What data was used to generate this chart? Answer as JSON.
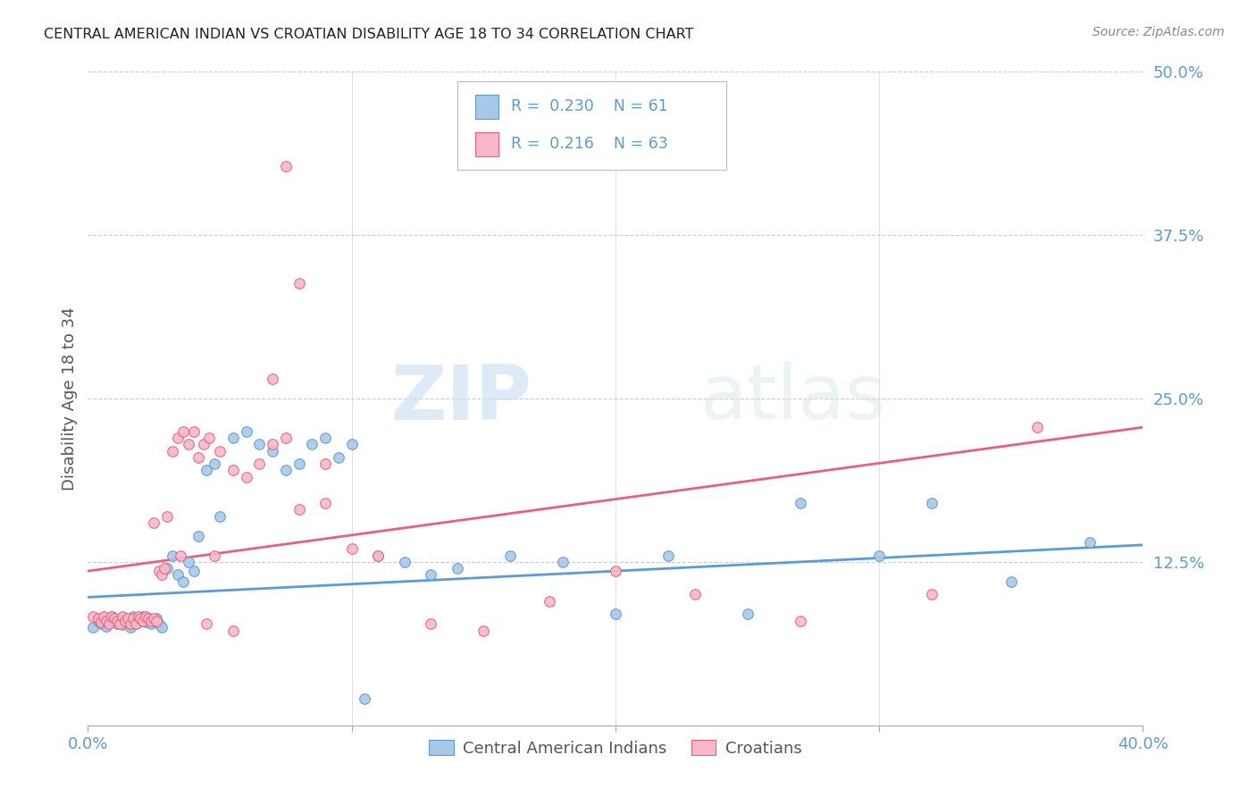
{
  "title": "CENTRAL AMERICAN INDIAN VS CROATIAN DISABILITY AGE 18 TO 34 CORRELATION CHART",
  "source": "Source: ZipAtlas.com",
  "ylabel": "Disability Age 18 to 34",
  "xlim": [
    0.0,
    0.4
  ],
  "ylim": [
    0.0,
    0.5
  ],
  "legend_r1": "0.230",
  "legend_n1": "61",
  "legend_r2": "0.216",
  "legend_n2": "63",
  "legend_label1": "Central American Indians",
  "legend_label2": "Croatians",
  "color_blue": "#a8c8e8",
  "color_pink": "#f9b8c8",
  "color_blue_edge": "#5b9bd5",
  "color_pink_edge": "#e8607a",
  "color_blue_line": "#5b9bd5",
  "color_pink_line": "#e8607a",
  "color_text_blue": "#5b9bd5",
  "color_axis_blue": "#5b9bd5",
  "watermark_zip": "ZIP",
  "watermark_atlas": "atlas",
  "blue_scatter_x": [
    0.002,
    0.004,
    0.005,
    0.006,
    0.007,
    0.008,
    0.009,
    0.01,
    0.011,
    0.012,
    0.013,
    0.014,
    0.015,
    0.016,
    0.017,
    0.018,
    0.019,
    0.02,
    0.021,
    0.022,
    0.023,
    0.024,
    0.025,
    0.026,
    0.027,
    0.028,
    0.03,
    0.032,
    0.034,
    0.036,
    0.038,
    0.04,
    0.042,
    0.045,
    0.048,
    0.05,
    0.055,
    0.06,
    0.065,
    0.07,
    0.075,
    0.08,
    0.085,
    0.09,
    0.095,
    0.1,
    0.11,
    0.12,
    0.13,
    0.14,
    0.16,
    0.18,
    0.2,
    0.22,
    0.25,
    0.27,
    0.3,
    0.32,
    0.35,
    0.38,
    0.105
  ],
  "blue_scatter_y": [
    0.075,
    0.08,
    0.078,
    0.082,
    0.076,
    0.079,
    0.083,
    0.08,
    0.078,
    0.081,
    0.077,
    0.082,
    0.08,
    0.075,
    0.083,
    0.078,
    0.081,
    0.08,
    0.083,
    0.079,
    0.082,
    0.078,
    0.08,
    0.082,
    0.078,
    0.075,
    0.12,
    0.13,
    0.115,
    0.11,
    0.125,
    0.118,
    0.145,
    0.195,
    0.2,
    0.16,
    0.22,
    0.225,
    0.215,
    0.21,
    0.195,
    0.2,
    0.215,
    0.22,
    0.205,
    0.215,
    0.13,
    0.125,
    0.115,
    0.12,
    0.13,
    0.125,
    0.085,
    0.13,
    0.085,
    0.17,
    0.13,
    0.17,
    0.11,
    0.14,
    0.02
  ],
  "pink_scatter_x": [
    0.002,
    0.004,
    0.005,
    0.006,
    0.007,
    0.008,
    0.009,
    0.01,
    0.011,
    0.012,
    0.013,
    0.014,
    0.015,
    0.016,
    0.017,
    0.018,
    0.019,
    0.02,
    0.021,
    0.022,
    0.023,
    0.024,
    0.025,
    0.026,
    0.027,
    0.028,
    0.029,
    0.03,
    0.032,
    0.034,
    0.036,
    0.038,
    0.04,
    0.042,
    0.044,
    0.046,
    0.048,
    0.05,
    0.055,
    0.06,
    0.065,
    0.07,
    0.075,
    0.08,
    0.09,
    0.1,
    0.11,
    0.13,
    0.15,
    0.175,
    0.2,
    0.23,
    0.27,
    0.32,
    0.36,
    0.025,
    0.035,
    0.045,
    0.055,
    0.07,
    0.075,
    0.08,
    0.09
  ],
  "pink_scatter_y": [
    0.083,
    0.082,
    0.079,
    0.083,
    0.08,
    0.078,
    0.083,
    0.082,
    0.08,
    0.078,
    0.083,
    0.08,
    0.082,
    0.078,
    0.082,
    0.078,
    0.083,
    0.082,
    0.08,
    0.083,
    0.082,
    0.08,
    0.082,
    0.08,
    0.118,
    0.115,
    0.12,
    0.16,
    0.21,
    0.22,
    0.225,
    0.215,
    0.225,
    0.205,
    0.215,
    0.22,
    0.13,
    0.21,
    0.195,
    0.19,
    0.2,
    0.215,
    0.22,
    0.165,
    0.2,
    0.135,
    0.13,
    0.078,
    0.072,
    0.095,
    0.118,
    0.1,
    0.08,
    0.1,
    0.228,
    0.155,
    0.13,
    0.078,
    0.072,
    0.265,
    0.428,
    0.338,
    0.17
  ],
  "blue_trend_x": [
    0.0,
    0.4
  ],
  "blue_trend_y": [
    0.098,
    0.138
  ],
  "pink_trend_x": [
    0.0,
    0.4
  ],
  "pink_trend_y": [
    0.118,
    0.228
  ]
}
